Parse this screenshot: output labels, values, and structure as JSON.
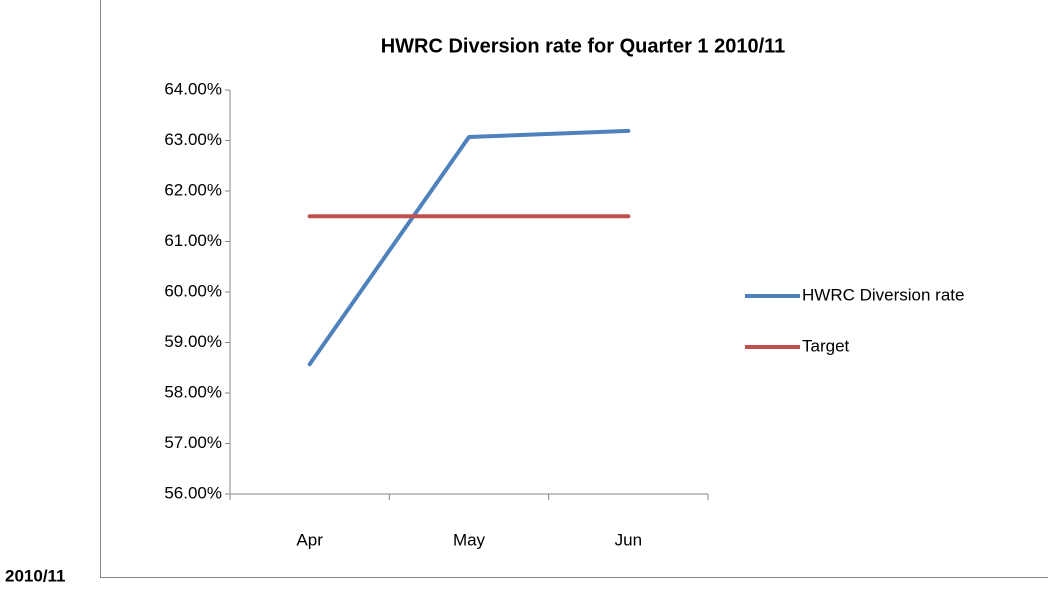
{
  "caption": "2010/11",
  "chart_data": {
    "type": "line",
    "title": "HWRC Diversion rate for Quarter 1 2010/11",
    "categories": [
      "Apr",
      "May",
      "Jun"
    ],
    "series": [
      {
        "name": "HWRC Diversion rate",
        "color": "#4f81bd",
        "values": [
          58.57,
          63.07,
          63.19
        ]
      },
      {
        "name": "Target",
        "color": "#c0504d",
        "values": [
          61.5,
          61.5,
          61.5
        ]
      }
    ],
    "ylim": [
      56,
      64
    ],
    "yticks": [
      {
        "value": 56,
        "label": "56.00%"
      },
      {
        "value": 57,
        "label": "57.00%"
      },
      {
        "value": 58,
        "label": "58.00%"
      },
      {
        "value": 59,
        "label": "59.00%"
      },
      {
        "value": 60,
        "label": "60.00%"
      },
      {
        "value": 61,
        "label": "61.00%"
      },
      {
        "value": 62,
        "label": "62.00%"
      },
      {
        "value": 63,
        "label": "63.00%"
      },
      {
        "value": 64,
        "label": "64.00%"
      }
    ],
    "grid": false,
    "legend": "right"
  }
}
